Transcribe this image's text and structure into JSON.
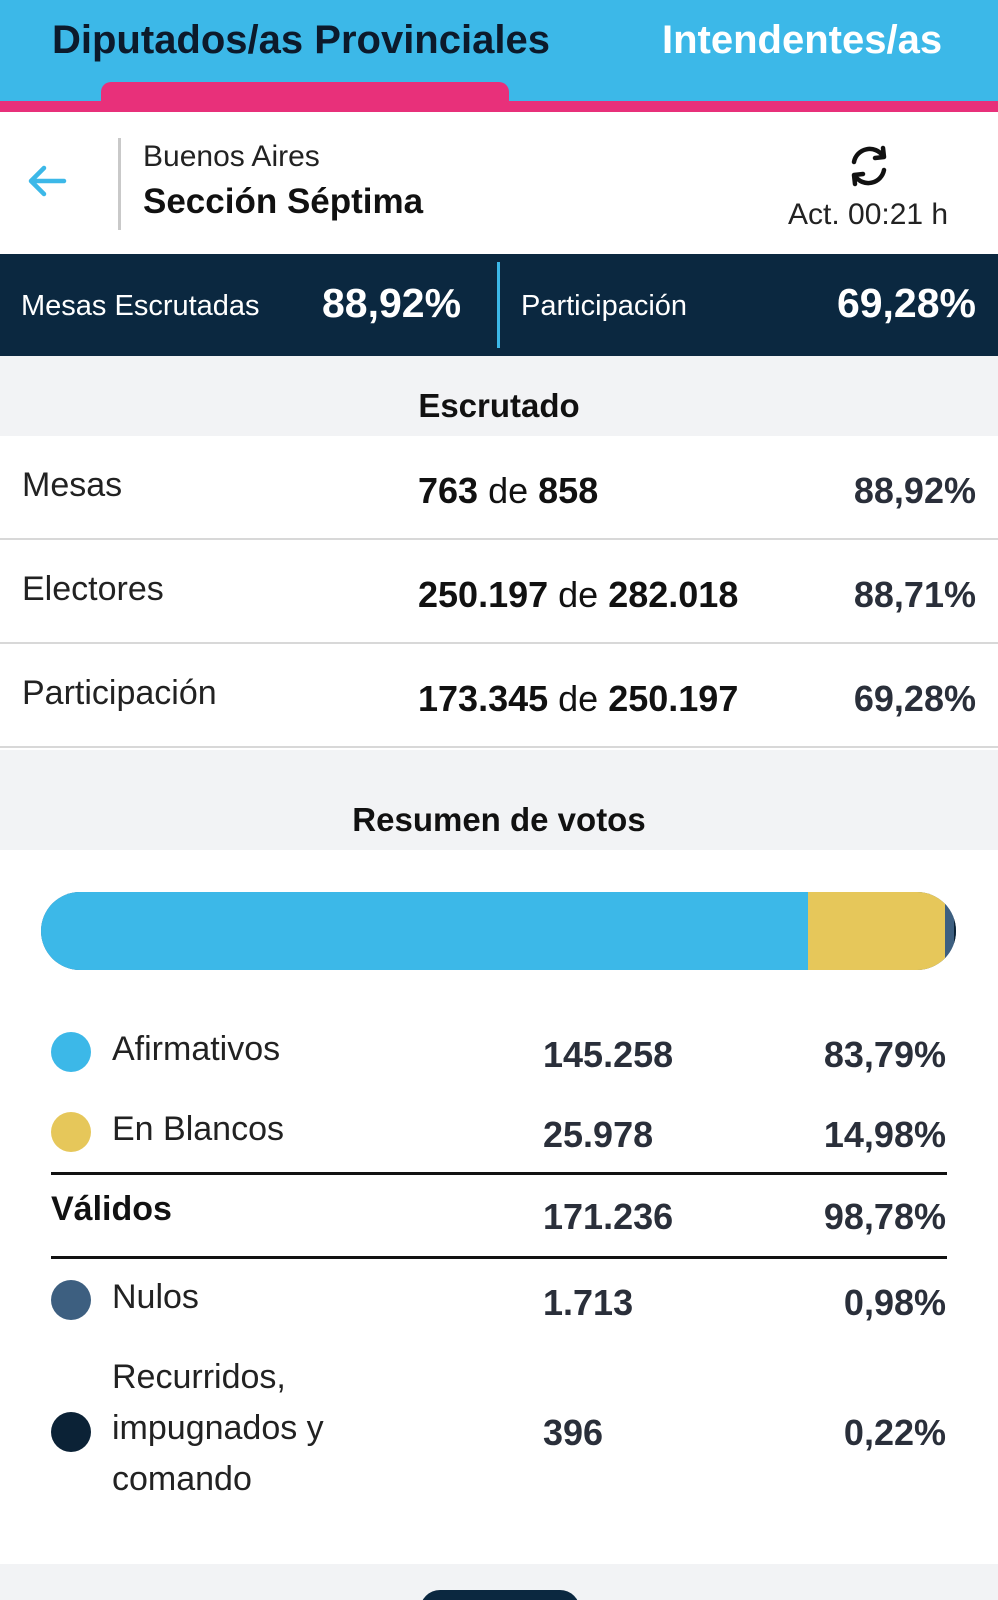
{
  "tabs": {
    "active": "Diputados/as Provinciales",
    "other": "Intendentes/as"
  },
  "header": {
    "region": "Buenos Aires",
    "section": "Sección Séptima",
    "updated": "Act. 00:21 h"
  },
  "stats": {
    "mesas_label": "Mesas Escrutadas",
    "mesas_value": "88,92%",
    "participacion_label": "Participación",
    "participacion_value": "69,28%"
  },
  "escrutado": {
    "title": "Escrutado",
    "rows": [
      {
        "label": "Mesas",
        "a": "763",
        "sep": "de",
        "b": "858",
        "pct": "88,92%"
      },
      {
        "label": "Electores",
        "a": "250.197",
        "sep": "de",
        "b": "282.018",
        "pct": "88,71%"
      },
      {
        "label": "Participación",
        "a": "173.345",
        "sep": "de",
        "b": "250.197",
        "pct": "69,28%"
      }
    ]
  },
  "resumen": {
    "title": "Resumen de votos",
    "bar": [
      {
        "name": "Afirmativos",
        "share": 83.79,
        "color": "#3cb8e8"
      },
      {
        "name": "En Blancos",
        "share": 14.98,
        "color": "#e6c75a"
      },
      {
        "name": "Nulos",
        "share": 0.98,
        "color": "#3d5f80"
      },
      {
        "name": "Recurridos",
        "share": 0.22,
        "color": "#0b2236"
      }
    ],
    "rows": [
      {
        "label": "Afirmativos",
        "value": "145.258",
        "pct": "83,79%",
        "color": "#3cb8e8"
      },
      {
        "label": "En Blancos",
        "value": "25.978",
        "pct": "14,98%",
        "color": "#e6c75a"
      }
    ],
    "total": {
      "label": "Válidos",
      "value": "171.236",
      "pct": "98,78%"
    },
    "rows2": [
      {
        "label": "Nulos",
        "value": "1.713",
        "pct": "0,98%",
        "color": "#3d5f80"
      },
      {
        "label_lines": [
          "Recurridos,",
          "impugnados y",
          "comando"
        ],
        "value": "396",
        "pct": "0,22%",
        "color": "#0b2236"
      }
    ]
  }
}
